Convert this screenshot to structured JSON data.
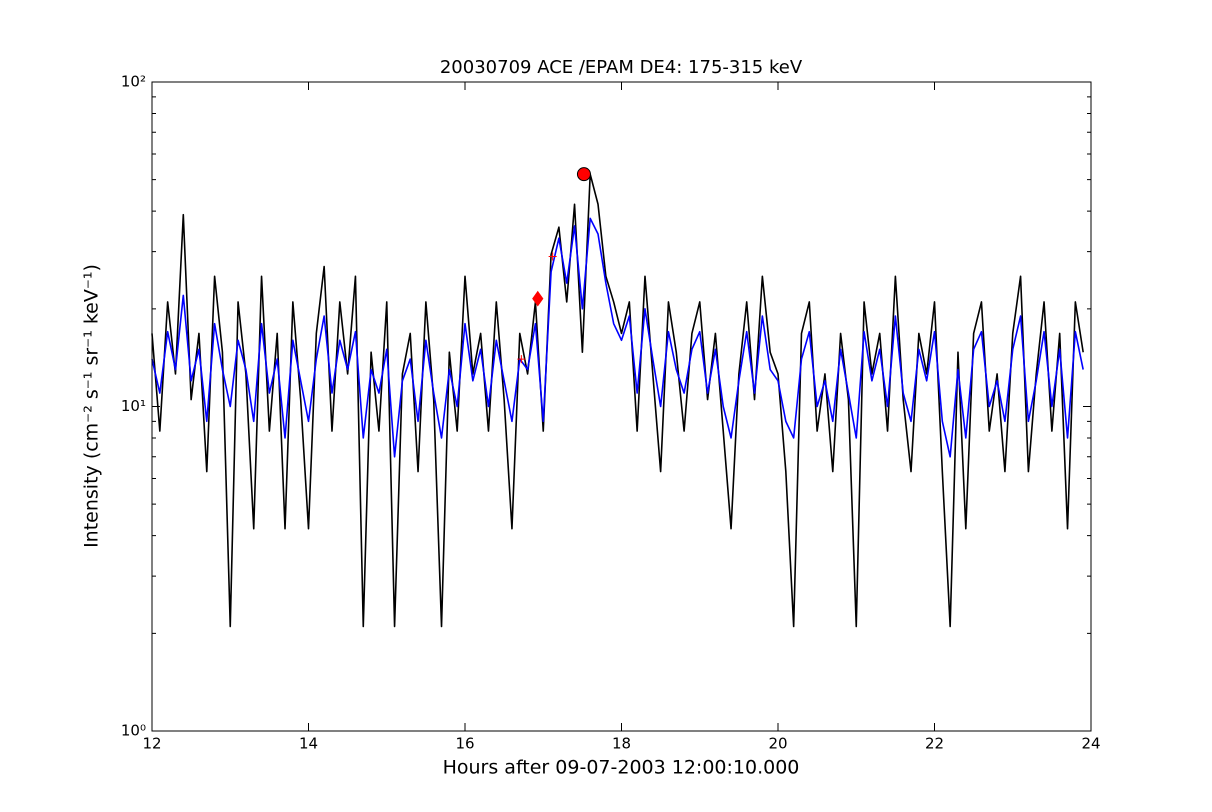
{
  "chart_data": {
    "type": "line",
    "title": "20030709 ACE /EPAM DE4: 175-315 keV",
    "xlabel": "Hours after 09-07-2003 12:00:10.000",
    "ylabel": "Intensity (cm⁻² s⁻¹ sr⁻¹ keV⁻¹)",
    "log_y": true,
    "xlim": [
      12,
      24
    ],
    "xticks": [
      12,
      14,
      16,
      18,
      20,
      22,
      24
    ],
    "ylim": [
      1,
      100
    ],
    "yticks": [
      {
        "value": 1,
        "label": "10⁰"
      },
      {
        "value": 10,
        "label": "10¹"
      },
      {
        "value": 100,
        "label": "10²"
      }
    ],
    "yminorticks": [
      2,
      3,
      4,
      5,
      6,
      7,
      8,
      9,
      20,
      30,
      40,
      50,
      60,
      70,
      80,
      90
    ],
    "x": [
      12.0,
      12.1,
      12.2,
      12.3,
      12.4,
      12.5,
      12.6,
      12.7,
      12.8,
      12.9,
      13.0,
      13.1,
      13.2,
      13.3,
      13.4,
      13.5,
      13.6,
      13.7,
      13.8,
      13.9,
      14.0,
      14.1,
      14.2,
      14.3,
      14.4,
      14.5,
      14.6,
      14.7,
      14.8,
      14.9,
      15.0,
      15.1,
      15.2,
      15.3,
      15.4,
      15.5,
      15.6,
      15.7,
      15.8,
      15.9,
      16.0,
      16.1,
      16.2,
      16.3,
      16.4,
      16.5,
      16.6,
      16.7,
      16.8,
      16.9,
      17.0,
      17.1,
      17.2,
      17.3,
      17.4,
      17.5,
      17.6,
      17.7,
      17.8,
      17.9,
      18.0,
      18.1,
      18.2,
      18.3,
      18.4,
      18.5,
      18.6,
      18.7,
      18.8,
      18.9,
      19.0,
      19.1,
      19.2,
      19.3,
      19.4,
      19.5,
      19.6,
      19.7,
      19.8,
      19.9,
      20.0,
      20.1,
      20.2,
      20.3,
      20.4,
      20.5,
      20.6,
      20.7,
      20.8,
      20.9,
      21.0,
      21.1,
      21.2,
      21.3,
      21.4,
      21.5,
      21.6,
      21.7,
      21.8,
      21.9,
      22.0,
      22.1,
      22.2,
      22.3,
      22.4,
      22.5,
      22.6,
      22.7,
      22.8,
      22.9,
      23.0,
      23.1,
      23.2,
      23.3,
      23.4,
      23.5,
      23.6,
      23.7,
      23.8,
      23.9
    ],
    "series": [
      {
        "color": "#000000",
        "values": [
          16.8,
          8.4,
          21,
          12.6,
          39,
          10.5,
          16.8,
          6.3,
          25.2,
          14.7,
          2.1,
          21,
          12.6,
          4.2,
          25.2,
          8.4,
          16.8,
          4.2,
          21,
          10.5,
          4.2,
          16.8,
          27,
          8.4,
          21,
          12.6,
          25.2,
          2.1,
          14.7,
          8.4,
          21,
          2.1,
          12.6,
          16.8,
          6.3,
          21,
          10.5,
          2.1,
          14.7,
          8.4,
          25.2,
          12.6,
          16.8,
          8.4,
          21,
          10.5,
          4.2,
          16.8,
          12.6,
          21,
          8.4,
          29.4,
          35.7,
          21,
          42,
          14.7,
          52,
          42,
          25.2,
          21,
          16.8,
          21,
          8.4,
          25.2,
          12.6,
          6.3,
          21,
          14.7,
          8.4,
          16.8,
          21,
          10.5,
          16.8,
          8.4,
          4.2,
          12.6,
          21,
          10.5,
          25.2,
          14.7,
          12.6,
          6.3,
          2.1,
          16.8,
          21,
          8.4,
          12.6,
          6.3,
          16.8,
          10.5,
          2.1,
          21,
          12.6,
          16.8,
          8.4,
          25.2,
          10.5,
          6.3,
          16.8,
          12.6,
          21,
          6.3,
          2.1,
          14.7,
          4.2,
          16.8,
          21,
          8.4,
          12.6,
          6.3,
          16.8,
          25.2,
          6.3,
          12.6,
          21,
          8.4,
          16.8,
          4.2,
          21,
          14.7
        ]
      },
      {
        "color": "#0000ff",
        "values": [
          14,
          11,
          17,
          13,
          22,
          12,
          15,
          9,
          18,
          13,
          10,
          16,
          13,
          9,
          18,
          11,
          14,
          8,
          16,
          12,
          9,
          14,
          19,
          11,
          16,
          13,
          17,
          8,
          13,
          11,
          15,
          7,
          12,
          14,
          9,
          16,
          11,
          8,
          13,
          10,
          18,
          12,
          15,
          10,
          16,
          12,
          9,
          14,
          13,
          18,
          9,
          26,
          33,
          24,
          36,
          20,
          38,
          34,
          24,
          18,
          16,
          19,
          11,
          20,
          14,
          10,
          17,
          13,
          11,
          15,
          17,
          11,
          15,
          10,
          8,
          12,
          17,
          11,
          19,
          13,
          12,
          9,
          8,
          14,
          17,
          10,
          12,
          9,
          15,
          11,
          8,
          17,
          12,
          15,
          10,
          19,
          11,
          9,
          15,
          12,
          17,
          9,
          7,
          13,
          8,
          15,
          17,
          10,
          12,
          9,
          15,
          19,
          9,
          12,
          17,
          10,
          15,
          8,
          17,
          13
        ]
      }
    ],
    "markers": [
      {
        "x": 17.52,
        "y": 52,
        "shape": "circle",
        "color": "#ff0000"
      },
      {
        "x": 16.93,
        "y": 21.5,
        "shape": "diamond",
        "color": "#ff0000"
      },
      {
        "x": 16.72,
        "y": 14,
        "shape": "plus",
        "color": "#ff0000"
      },
      {
        "x": 17.12,
        "y": 29,
        "shape": "plus",
        "color": "#ff0000"
      }
    ]
  }
}
